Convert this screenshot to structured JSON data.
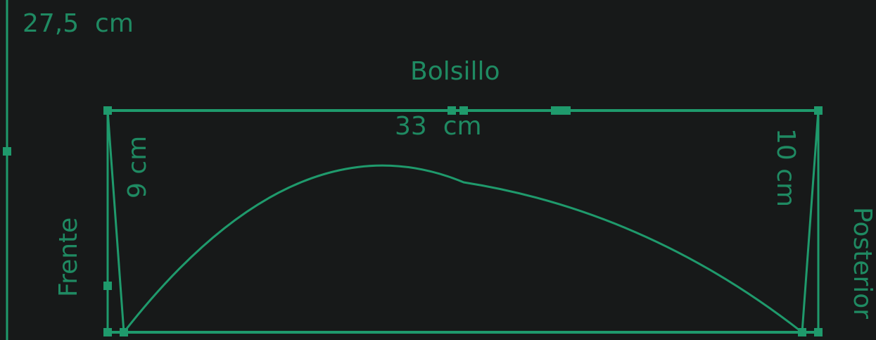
{
  "colors": {
    "background": "#171919",
    "line": "#1f9a6c",
    "text": "#1f8a62"
  },
  "labels": {
    "top_measure": "27,5  cm",
    "piece_name": "Bolsillo",
    "width_measure": "33  cm",
    "left_height": "9 cm",
    "right_height": "10 cm",
    "front": "Frente",
    "back": "Posterior"
  }
}
